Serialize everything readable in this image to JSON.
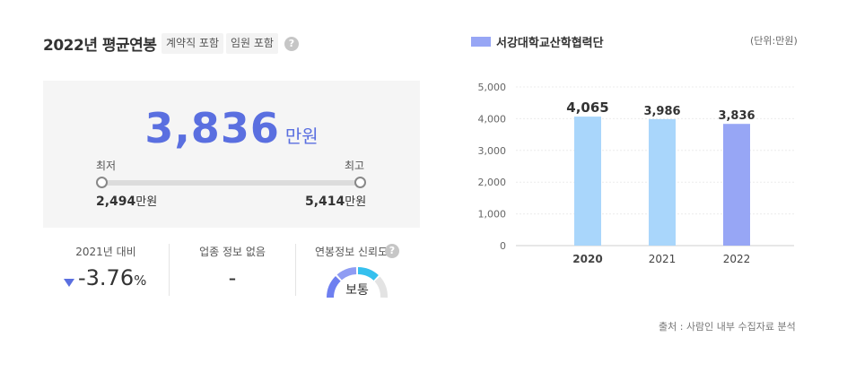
{
  "header": {
    "title": "2022년 평균연봉",
    "tag_contract": "계약직 포함",
    "tag_exec": "임원 포함",
    "help_icon": "question-circle-icon"
  },
  "salary": {
    "value": "3,836",
    "unit": "만원",
    "min_label": "최저",
    "max_label": "최고",
    "min_value": "2,494",
    "max_value": "5,414",
    "min_unit": "만원",
    "max_unit": "만원"
  },
  "stats": {
    "change_label": "2021년 대비",
    "change_icon": "triangle-down-icon",
    "change_value": "-3.76",
    "change_unit": "%",
    "industry_label": "업종 정보 없음",
    "industry_value": "-",
    "reliability_label": "연봉정보 신뢰도",
    "reliability_value": "보통",
    "reliability_level": 0.5
  },
  "chart_meta": {
    "unit_note": "(단위:만원)",
    "source": "출처 : 사람인 내부 수집자료 분석"
  },
  "colors": {
    "accent": "#5a6fe0",
    "bar_past": "#a9d6fb",
    "bar_current": "#97a6f5",
    "gauge_blue": "#6e7ff0",
    "gauge_cyan": "#35c0ee",
    "gauge_grey": "#e3e3e3"
  },
  "chart_data": {
    "type": "bar",
    "categories": [
      "2020",
      "2021",
      "2022"
    ],
    "series": [
      {
        "name": "서강대학교산학협력단",
        "values": [
          4065,
          3986,
          3836
        ]
      }
    ],
    "value_labels": [
      "4,065",
      "3,986",
      "3,836"
    ],
    "yticks": [
      "5,000",
      "4,000",
      "3,000",
      "2,000",
      "1,000",
      "0"
    ],
    "ylim": [
      0,
      5000
    ],
    "title": "",
    "xlabel": "",
    "ylabel": "",
    "grid": true,
    "legend": "top-left"
  }
}
